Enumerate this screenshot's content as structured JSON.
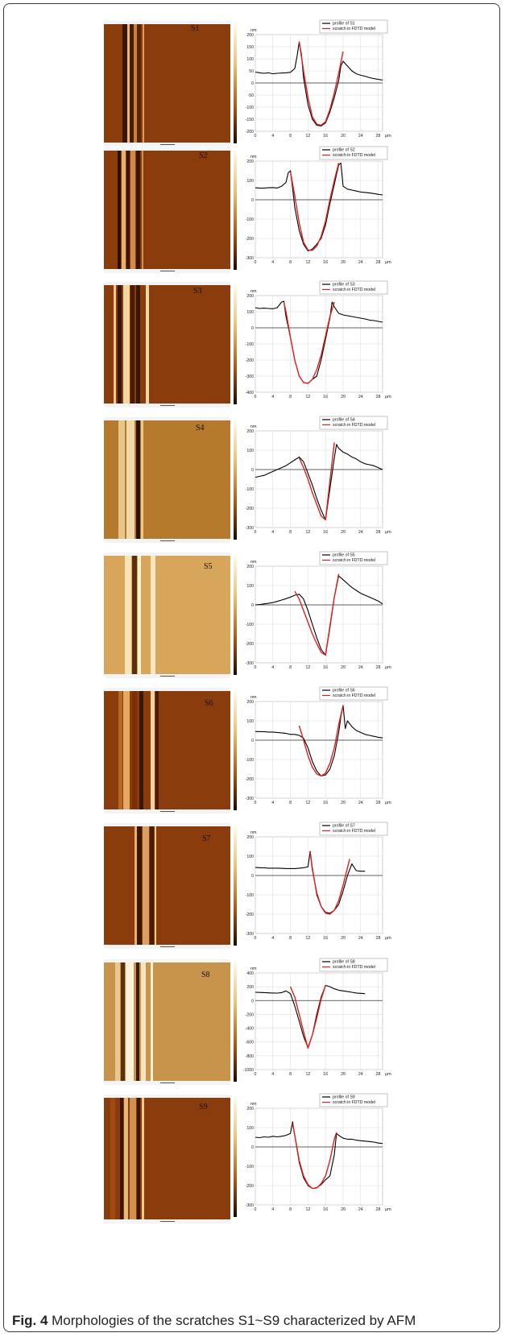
{
  "caption": {
    "label": "Fig. 4",
    "text": "Morphologies of the scratches S1~S9 characterized by AFM"
  },
  "colors": {
    "profile": "#000000",
    "model": "#e02020"
  },
  "axis_units": {
    "y": "nm",
    "x": "μm"
  },
  "chart_data": [
    {
      "type": "line",
      "sample": "S1",
      "legend": [
        "profile of S1",
        "scratch in FDTD model"
      ],
      "ylim": [
        -200,
        200
      ],
      "yticks": [
        200,
        150,
        100,
        50,
        0,
        -50,
        -100,
        -150,
        -200
      ],
      "xticks": [
        0,
        4,
        8,
        12,
        16,
        20,
        24,
        28
      ],
      "xlim": [
        0,
        29
      ],
      "series": [
        {
          "name": "profile of S1",
          "x": [
            0,
            1,
            2,
            3,
            4,
            5,
            6,
            7,
            8,
            9,
            9.5,
            10,
            10.5,
            11,
            12,
            13,
            14,
            15,
            16,
            17,
            18,
            19,
            19.5,
            20,
            21,
            22,
            23,
            24,
            25,
            26,
            27,
            28,
            29
          ],
          "y": [
            45,
            42,
            40,
            42,
            38,
            40,
            41,
            42,
            44,
            60,
            110,
            170,
            120,
            20,
            -90,
            -150,
            -175,
            -178,
            -165,
            -120,
            -60,
            10,
            70,
            90,
            70,
            50,
            38,
            32,
            28,
            22,
            18,
            15,
            12
          ]
        },
        {
          "name": "scratch in FDTD model",
          "x": [
            10,
            11,
            12,
            13,
            14,
            15,
            16,
            17,
            18,
            19,
            20
          ],
          "y": [
            170,
            50,
            -60,
            -140,
            -170,
            -175,
            -160,
            -110,
            -40,
            40,
            130
          ]
        }
      ]
    },
    {
      "type": "line",
      "sample": "S2",
      "legend": [
        "profile of S2",
        "scratch in FDTD model"
      ],
      "ylim": [
        -300,
        200
      ],
      "yticks": [
        200,
        100,
        0,
        -100,
        -200,
        -300
      ],
      "xticks": [
        0,
        4,
        8,
        12,
        16,
        20,
        24,
        28
      ],
      "xlim": [
        0,
        29
      ],
      "series": [
        {
          "name": "profile of S2",
          "x": [
            0,
            1,
            2,
            3,
            4,
            5,
            6,
            7,
            7.5,
            8,
            8.5,
            9,
            10,
            11,
            12,
            13,
            14,
            15,
            16,
            17,
            18,
            19,
            19.5,
            20,
            21,
            22,
            23,
            24,
            25,
            26,
            27,
            28,
            29
          ],
          "y": [
            62,
            60,
            60,
            62,
            63,
            61,
            70,
            90,
            140,
            150,
            60,
            -40,
            -160,
            -230,
            -265,
            -255,
            -230,
            -200,
            -130,
            -20,
            80,
            180,
            190,
            70,
            55,
            50,
            45,
            40,
            38,
            35,
            32,
            28,
            25
          ]
        },
        {
          "name": "scratch in FDTD model",
          "x": [
            8,
            9,
            10,
            11,
            12,
            13,
            14,
            15,
            16,
            17,
            18,
            19
          ],
          "y": [
            145,
            20,
            -120,
            -220,
            -260,
            -262,
            -240,
            -190,
            -110,
            0,
            100,
            190
          ]
        }
      ]
    },
    {
      "type": "line",
      "sample": "S3",
      "legend": [
        "profile of S3",
        "scratch in FDTD model"
      ],
      "ylim": [
        -400,
        200
      ],
      "yticks": [
        200,
        100,
        0,
        -100,
        -200,
        -300,
        -400
      ],
      "xticks": [
        0,
        4,
        8,
        12,
        16,
        20,
        24,
        28
      ],
      "xlim": [
        0,
        29
      ],
      "series": [
        {
          "name": "profile of S3",
          "x": [
            0,
            1,
            2,
            3,
            4,
            5,
            6,
            6.5,
            7,
            8,
            9,
            10,
            11,
            12,
            13,
            14,
            15,
            16,
            17,
            17.5,
            18,
            19,
            20,
            21,
            22,
            23,
            24,
            25,
            26,
            27,
            28,
            29
          ],
          "y": [
            125,
            120,
            122,
            120,
            118,
            125,
            160,
            165,
            70,
            -60,
            -200,
            -300,
            -340,
            -345,
            -320,
            -300,
            -200,
            -70,
            60,
            160,
            130,
            90,
            80,
            75,
            70,
            65,
            60,
            55,
            48,
            45,
            40,
            35
          ]
        },
        {
          "name": "scratch in FDTD model",
          "x": [
            6.5,
            7,
            8,
            9,
            10,
            11,
            12,
            13,
            14,
            15,
            16,
            17,
            18
          ],
          "y": [
            160,
            100,
            -60,
            -200,
            -300,
            -340,
            -345,
            -320,
            -260,
            -170,
            -50,
            70,
            160
          ]
        }
      ]
    },
    {
      "type": "line",
      "sample": "S4",
      "legend": [
        "profile of S4",
        "scratch in FDTD model"
      ],
      "ylim": [
        -300,
        200
      ],
      "yticks": [
        200,
        100,
        0,
        -100,
        -200,
        -300
      ],
      "xticks": [
        0,
        4,
        8,
        12,
        16,
        20,
        24,
        28
      ],
      "xlim": [
        0,
        29
      ],
      "series": [
        {
          "name": "profile of S4",
          "x": [
            0,
            1,
            2,
            3,
            4,
            5,
            6,
            7,
            8,
            9,
            10,
            11,
            12,
            13,
            14,
            15,
            16,
            17,
            18,
            18.5,
            19,
            20,
            21,
            22,
            23,
            24,
            25,
            26,
            27,
            28,
            29
          ],
          "y": [
            -40,
            -35,
            -30,
            -20,
            -10,
            0,
            10,
            20,
            35,
            50,
            65,
            40,
            -20,
            -80,
            -150,
            -210,
            -260,
            -100,
            60,
            130,
            110,
            90,
            80,
            65,
            55,
            40,
            30,
            25,
            20,
            10,
            0
          ]
        },
        {
          "name": "scratch in FDTD model",
          "x": [
            10,
            11,
            12,
            13,
            14,
            15,
            16,
            17,
            18
          ],
          "y": [
            60,
            10,
            -50,
            -120,
            -180,
            -240,
            -260,
            -60,
            140
          ]
        }
      ]
    },
    {
      "type": "line",
      "sample": "S5",
      "legend": [
        "profile of S5",
        "scratch in FDTD model"
      ],
      "ylim": [
        -300,
        200
      ],
      "yticks": [
        200,
        100,
        0,
        -100,
        -200,
        -300
      ],
      "xticks": [
        0,
        4,
        8,
        12,
        16,
        20,
        24,
        28
      ],
      "xlim": [
        0,
        29
      ],
      "series": [
        {
          "name": "profile of S5",
          "x": [
            0,
            1,
            2,
            3,
            4,
            5,
            6,
            7,
            8,
            9,
            10,
            11,
            12,
            13,
            14,
            15,
            16,
            17,
            18,
            19,
            20,
            21,
            22,
            23,
            24,
            25,
            26,
            27,
            28,
            29
          ],
          "y": [
            0,
            2,
            5,
            8,
            12,
            18,
            25,
            32,
            40,
            50,
            55,
            30,
            -30,
            -100,
            -170,
            -230,
            -260,
            -120,
            40,
            150,
            130,
            110,
            90,
            75,
            60,
            50,
            40,
            30,
            20,
            5
          ]
        },
        {
          "name": "scratch in FDTD model",
          "x": [
            9,
            10,
            11,
            12,
            13,
            14,
            15,
            16,
            17,
            18,
            19
          ],
          "y": [
            70,
            30,
            -30,
            -90,
            -150,
            -200,
            -245,
            -260,
            -110,
            40,
            160
          ]
        }
      ]
    },
    {
      "type": "line",
      "sample": "S6",
      "legend": [
        "profile of S6",
        "scratch in FDTD model"
      ],
      "ylim": [
        -300,
        200
      ],
      "yticks": [
        200,
        100,
        0,
        -100,
        -200,
        -300
      ],
      "xticks": [
        0,
        4,
        8,
        12,
        16,
        20,
        24,
        28
      ],
      "xlim": [
        0,
        29
      ],
      "series": [
        {
          "name": "profile of S6",
          "x": [
            0,
            1,
            2,
            3,
            4,
            5,
            6,
            7,
            8,
            9,
            10,
            11,
            12,
            13,
            14,
            15,
            16,
            17,
            18,
            19,
            19.5,
            20,
            20.5,
            21,
            22,
            23,
            24,
            25,
            26,
            27,
            28,
            29
          ],
          "y": [
            45,
            44,
            44,
            42,
            42,
            40,
            38,
            35,
            30,
            30,
            25,
            10,
            -40,
            -110,
            -160,
            -185,
            -180,
            -150,
            -80,
            40,
            120,
            180,
            60,
            100,
            70,
            50,
            40,
            30,
            25,
            20,
            15,
            12
          ]
        },
        {
          "name": "scratch in FDTD model",
          "x": [
            10,
            11,
            12,
            13,
            14,
            15,
            16,
            17,
            18,
            19,
            20
          ],
          "y": [
            75,
            0,
            -80,
            -140,
            -175,
            -185,
            -170,
            -120,
            -40,
            80,
            180
          ]
        }
      ]
    },
    {
      "type": "line",
      "sample": "S7",
      "legend": [
        "profile of S7",
        "scratch in FDTD model"
      ],
      "ylim": [
        -300,
        200
      ],
      "yticks": [
        200,
        100,
        0,
        -100,
        -200,
        -300
      ],
      "xticks": [
        0,
        4,
        8,
        12,
        16,
        20,
        24,
        28
      ],
      "xlim": [
        0,
        29
      ],
      "series": [
        {
          "name": "profile of S7",
          "x": [
            0,
            1,
            2,
            3,
            4,
            5,
            6,
            7,
            8,
            9,
            10,
            11,
            12,
            12.5,
            13,
            14,
            15,
            16,
            17,
            18,
            19,
            20,
            21,
            22,
            23,
            24,
            25
          ],
          "y": [
            42,
            40,
            40,
            38,
            38,
            38,
            37,
            36,
            36,
            36,
            38,
            40,
            45,
            125,
            40,
            -100,
            -160,
            -190,
            -195,
            -180,
            -150,
            -80,
            0,
            60,
            25,
            22,
            22
          ]
        },
        {
          "name": "scratch in FDTD model",
          "x": [
            12.5,
            13,
            14,
            15,
            16,
            17,
            18,
            19,
            20,
            21,
            21.5
          ],
          "y": [
            120,
            30,
            -90,
            -160,
            -195,
            -200,
            -180,
            -130,
            -50,
            40,
            85
          ]
        }
      ]
    },
    {
      "type": "line",
      "sample": "S8",
      "legend": [
        "profile of S8",
        "scratch in FDTD model"
      ],
      "ylim": [
        -1000,
        400
      ],
      "yticks": [
        400,
        200,
        0,
        -200,
        -400,
        -600,
        -800,
        -1000
      ],
      "xticks": [
        0,
        4,
        8,
        12,
        16,
        20,
        24,
        28
      ],
      "xlim": [
        0,
        29
      ],
      "series": [
        {
          "name": "profile of S8",
          "x": [
            0,
            1,
            2,
            3,
            4,
            5,
            6,
            7,
            8,
            9,
            10,
            11,
            12,
            13,
            14,
            15,
            16,
            17,
            18,
            19,
            20,
            21,
            22,
            23,
            24,
            25
          ],
          "y": [
            120,
            118,
            115,
            112,
            110,
            108,
            115,
            140,
            100,
            -80,
            -300,
            -520,
            -680,
            -500,
            -200,
            50,
            220,
            200,
            170,
            150,
            140,
            130,
            120,
            110,
            105,
            100
          ]
        },
        {
          "name": "scratch in FDTD model",
          "x": [
            8,
            9,
            10,
            11,
            12,
            13,
            14,
            15,
            16
          ],
          "y": [
            200,
            50,
            -200,
            -450,
            -690,
            -500,
            -250,
            20,
            220
          ]
        }
      ]
    },
    {
      "type": "line",
      "sample": "S9",
      "legend": [
        "profile of S9",
        "scratch in FDTD model"
      ],
      "ylim": [
        -300,
        200
      ],
      "yticks": [
        200,
        100,
        0,
        -100,
        -200,
        -300
      ],
      "xticks": [
        0,
        4,
        8,
        12,
        16,
        20,
        24,
        28
      ],
      "xlim": [
        0,
        29
      ],
      "series": [
        {
          "name": "profile of S9",
          "x": [
            0,
            1,
            2,
            3,
            4,
            5,
            6,
            7,
            8,
            8.5,
            9,
            10,
            11,
            12,
            13,
            14,
            15,
            16,
            17,
            18,
            18.5,
            19,
            20,
            21,
            22,
            23,
            24,
            25,
            26,
            27,
            28,
            29
          ],
          "y": [
            50,
            48,
            52,
            50,
            55,
            52,
            55,
            60,
            70,
            130,
            60,
            -80,
            -160,
            -200,
            -215,
            -210,
            -195,
            -170,
            -150,
            -40,
            70,
            60,
            45,
            40,
            40,
            35,
            32,
            30,
            28,
            25,
            20,
            18
          ]
        },
        {
          "name": "scratch in FDTD model",
          "x": [
            8.5,
            9,
            10,
            11,
            12,
            13,
            14,
            15,
            16,
            17,
            18,
            18.5
          ],
          "y": [
            120,
            60,
            -70,
            -150,
            -195,
            -215,
            -212,
            -190,
            -150,
            -70,
            40,
            75
          ]
        }
      ]
    }
  ]
}
